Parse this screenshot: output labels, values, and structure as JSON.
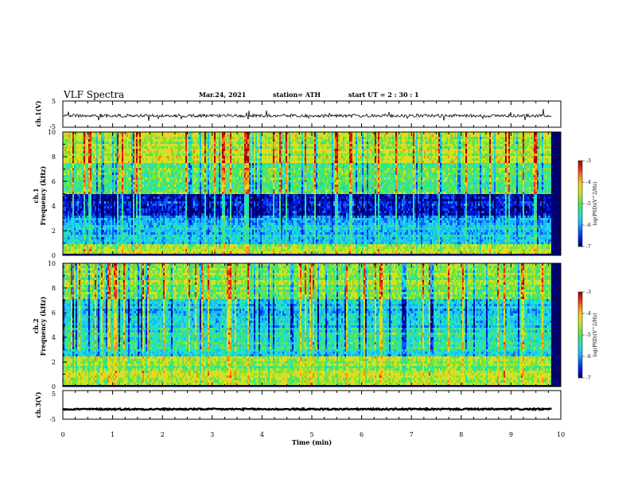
{
  "header": {
    "title": "VLF Spectra",
    "date": "Mar.24, 2021",
    "station": "station= ATH",
    "start_ut": "start UT =  2 : 30 : 1"
  },
  "chart_data": [
    {
      "type": "line",
      "panel": "ch1-voltage",
      "ylabel": "ch.1(V)",
      "ylim": [
        -5,
        5
      ],
      "yticks": [
        "5",
        "-5"
      ],
      "x_range_min": [
        0,
        9.82
      ],
      "baseline_v": -0.6,
      "noise_v": 0.6,
      "color": "#000000"
    },
    {
      "type": "heatmap",
      "panel": "ch1-spectrogram",
      "ylabel_top": "ch.1",
      "ylabel": "Frequency (kHz)",
      "ylim": [
        0,
        10
      ],
      "yticks": [
        "0",
        "2",
        "4",
        "6",
        "8",
        "10"
      ],
      "x_range_min": [
        0,
        9.82
      ],
      "colorbar": {
        "label": "log(PSD)(V^2/Hz)",
        "range": [
          -7,
          -3
        ],
        "ticks": [
          "-3",
          "-4",
          "-5",
          "-6",
          "-7"
        ]
      }
    },
    {
      "type": "heatmap",
      "panel": "ch2-spectrogram",
      "ylabel_top": "ch.2",
      "ylabel": "Frequency (kHz)",
      "ylim": [
        0,
        10
      ],
      "yticks": [
        "0",
        "2",
        "4",
        "6",
        "8",
        "10"
      ],
      "x_range_min": [
        0,
        9.82
      ],
      "colorbar": {
        "label": "log(PSD)(V^2/Hz)",
        "range": [
          -7,
          -3
        ],
        "ticks": [
          "-3",
          "-4",
          "-5",
          "-6",
          "-7"
        ]
      }
    },
    {
      "type": "line",
      "panel": "ch3-voltage",
      "ylabel": "ch.3(V)",
      "ylim": [
        -5,
        5
      ],
      "yticks": [
        "5",
        "-5"
      ],
      "x_range_min": [
        0,
        9.82
      ],
      "baseline_v": -1.5,
      "noise_v": 0.25,
      "color": "#000000"
    }
  ],
  "x_axis": {
    "label": "Time (min)",
    "xlim": [
      0,
      10
    ],
    "ticks": [
      "0",
      "1",
      "2",
      "3",
      "4",
      "5",
      "6",
      "7",
      "8",
      "9",
      "10"
    ]
  },
  "colormap": [
    "#00006e",
    "#0019d8",
    "#0f5bff",
    "#19b7ff",
    "#20e0d6",
    "#2fe685",
    "#7de23a",
    "#c9e623",
    "#f4d21d",
    "#f88a1a",
    "#e92a12",
    "#a30000"
  ]
}
